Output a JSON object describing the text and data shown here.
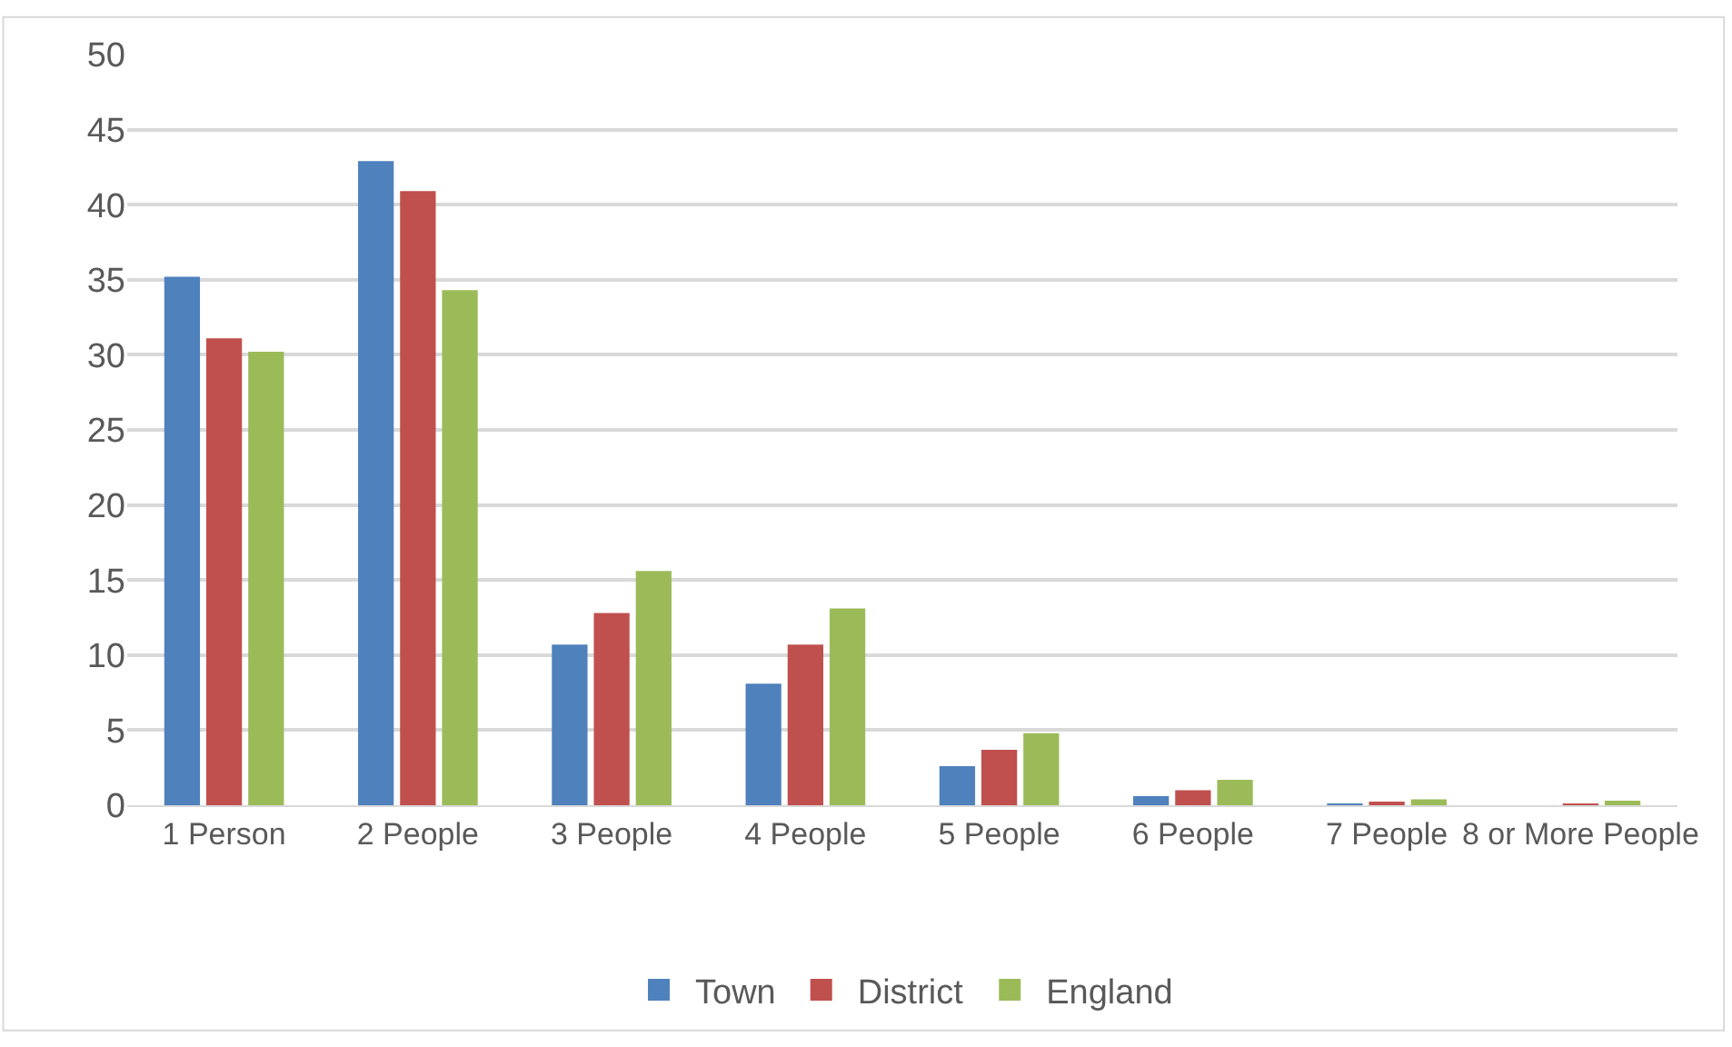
{
  "chart_data": {
    "type": "bar",
    "categories": [
      "1 Person",
      "2 People",
      "3 People",
      "4 People",
      "5 People",
      "6 People",
      "7 People",
      "8 or More People"
    ],
    "series": [
      {
        "name": "Town",
        "color": "#4f81bd",
        "values": [
          35.2,
          42.9,
          10.7,
          8.1,
          2.6,
          0.6,
          0.1,
          0
        ]
      },
      {
        "name": "District",
        "color": "#c0504d",
        "values": [
          31.1,
          40.9,
          12.8,
          10.7,
          3.7,
          1.0,
          0.2,
          0.1
        ]
      },
      {
        "name": "England",
        "color": "#9bbb59",
        "values": [
          30.2,
          34.3,
          15.6,
          13.1,
          4.8,
          1.7,
          0.4,
          0.3
        ]
      }
    ],
    "ylim": [
      0,
      50
    ],
    "yticks": [
      0,
      5,
      10,
      15,
      20,
      25,
      30,
      35,
      40,
      45,
      50
    ],
    "grid": "y",
    "legend": "bottom"
  }
}
